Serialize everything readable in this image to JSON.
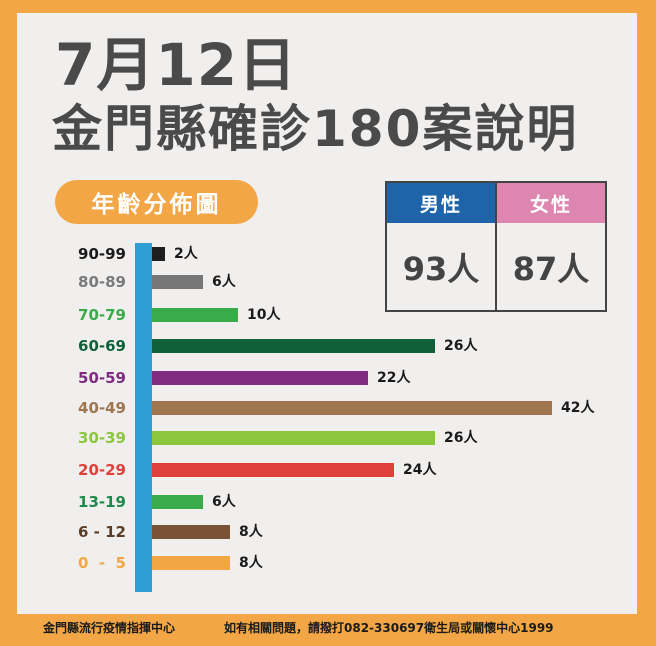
{
  "header": {
    "date": "7月12日",
    "title": "金門縣確診180案說明"
  },
  "section_label": "年齡分佈圖",
  "gender": {
    "male": {
      "label": "男性",
      "value": "93人",
      "color": "#1f63a8"
    },
    "female": {
      "label": "女性",
      "value": "87人",
      "color": "#dc86b0"
    }
  },
  "chart_data": {
    "type": "bar",
    "orientation": "horizontal",
    "title": "年齡分佈圖",
    "xlabel": "",
    "ylabel": "",
    "grid": false,
    "unit": "人",
    "total": 180,
    "categories": [
      "90-99",
      "80-89",
      "70-79",
      "60-69",
      "50-59",
      "40-49",
      "30-39",
      "20-29",
      "13-19",
      "6-12",
      "0-5"
    ],
    "values": [
      2,
      6,
      10,
      26,
      22,
      42,
      26,
      24,
      6,
      8,
      8
    ],
    "value_labels": [
      "2人",
      "6人",
      "10人",
      "26人",
      "22人",
      "42人",
      "26人",
      "24人",
      "6人",
      "8人",
      "8人"
    ],
    "category_labels": [
      "90-99",
      "80-89",
      "70-79",
      "60-69",
      "50-59",
      "40-49",
      "30-39",
      "20-29",
      "13-19",
      "6 - 12",
      "0  -  5"
    ],
    "colors": [
      "#1e1e1e",
      "#777777",
      "#3aab4a",
      "#10603a",
      "#7e2b80",
      "#a07650",
      "#8cc63f",
      "#e0403a",
      "#3aab4a",
      "#7a5236",
      "#f2a645"
    ],
    "label_colors": [
      "#1a1a1a",
      "#7a7a7a",
      "#3aab4a",
      "#10603a",
      "#7e2b80",
      "#a07650",
      "#8cc63f",
      "#e0403a",
      "#1d8a4a",
      "#5a3d28",
      "#f2a645"
    ],
    "gender_split": {
      "男性": 93,
      "女性": 87
    }
  },
  "footer": {
    "org": "金門縣流行疫情指揮中心",
    "contact": "如有相關問題，請撥打082-330697衛生局或關懷中心1999"
  },
  "colors": {
    "frame": "#f2a645",
    "panel": "#f1efee",
    "axis": "#2f9ed3",
    "title_text": "#4a4a4a"
  }
}
